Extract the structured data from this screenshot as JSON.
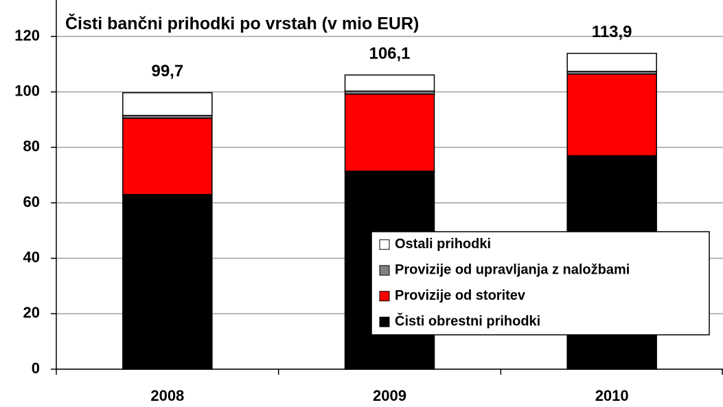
{
  "chart_data": {
    "type": "stacked_bar",
    "title": "Čisti bančni prihodki po vrstah (v mio EUR)",
    "categories": [
      "2008",
      "2009",
      "2010"
    ],
    "series": [
      {
        "name": "Čisti obrestni prihodki",
        "color": "#000000",
        "values": [
          63.0,
          71.4,
          77.0
        ]
      },
      {
        "name": "Provizije od storitev",
        "color": "#ff0000",
        "values": [
          27.5,
          27.8,
          29.4
        ]
      },
      {
        "name": "Provizije od upravljanja z naložbami",
        "color": "#808080",
        "values": [
          1.0,
          1.1,
          1.0
        ]
      },
      {
        "name": "Ostali prihodki",
        "color": "#ffffff",
        "values": [
          8.2,
          5.8,
          6.5
        ]
      }
    ],
    "totals": {
      "values": [
        99.7,
        106.1,
        113.9
      ],
      "value_labels": [
        "99,7",
        "106,1",
        "113,9"
      ]
    },
    "ylim": [
      0,
      120
    ],
    "yticks": [
      0,
      20,
      40,
      60,
      80,
      100,
      120
    ],
    "grid": true,
    "legend": "lower right"
  }
}
